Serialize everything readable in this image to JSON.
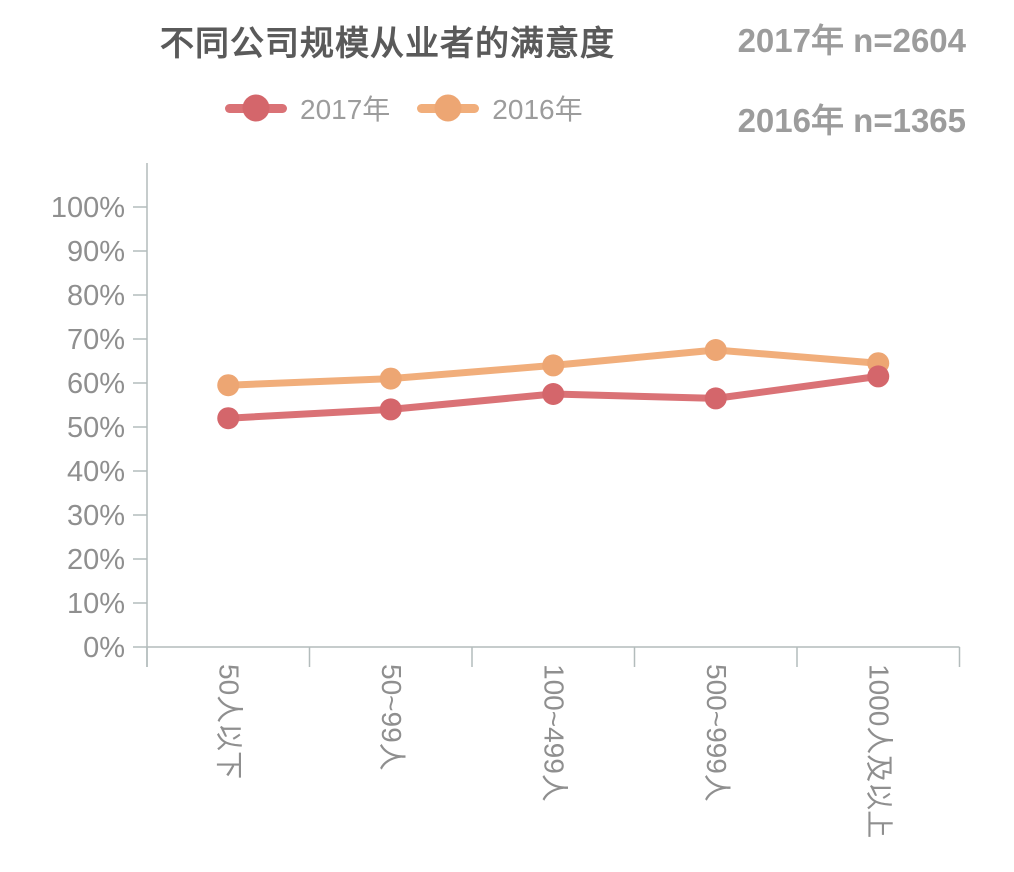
{
  "header": {
    "title": "不同公司规模从业者的满意度",
    "sample_notes": [
      "2017年 n=2604",
      "2016年 n=1365"
    ]
  },
  "legend": {
    "items": [
      {
        "label": "2017年",
        "line_color": "#da7276",
        "dot_color": "#d4666b"
      },
      {
        "label": "2016年",
        "line_color": "#f1ae7b",
        "dot_color": "#eda673"
      }
    ]
  },
  "chart_data": {
    "type": "line",
    "title": "不同公司规模从业者的满意度",
    "categories": [
      "50人以下",
      "50~99人",
      "100~499人",
      "500~999人",
      "1000人及以上"
    ],
    "series": [
      {
        "name": "2017年",
        "color": "#da7276",
        "dot_color": "#d4666b",
        "values": [
          52,
          54,
          57.5,
          56.5,
          61.5
        ]
      },
      {
        "name": "2016年",
        "color": "#f1ae7b",
        "dot_color": "#eda673",
        "values": [
          59.5,
          61,
          64,
          67.5,
          64.5
        ]
      }
    ],
    "xlabel": "",
    "ylabel": "",
    "ylim": [
      0,
      100
    ],
    "ytick_step": 10,
    "ytick_suffix": "%",
    "x_label_rotation": 90,
    "grid": false,
    "legend_position": "top-left"
  },
  "colors": {
    "title_text": "#5a5a5a",
    "annotation_text": "#9c9c9c",
    "legend_text": "#9c9c9c",
    "axis_text": "#8f8f8f",
    "axis_line": "#b3bcbc"
  }
}
